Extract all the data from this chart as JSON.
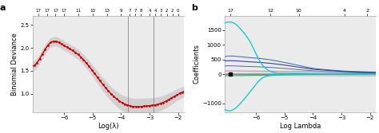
{
  "panel_a": {
    "title_label": "a",
    "xlabel": "Log(λ)",
    "ylabel": "Binomial Deviance",
    "top_axis_labels": [
      "17",
      "17",
      "17",
      "17",
      "11",
      "10",
      "13",
      "9",
      "7",
      "7",
      "8",
      "4",
      "4",
      "3",
      "2",
      "2",
      "0"
    ],
    "top_axis_x": [
      -6.9,
      -6.6,
      -6.3,
      -6.0,
      -5.5,
      -5.0,
      -4.5,
      -4.0,
      -3.7,
      -3.5,
      -3.3,
      -3.0,
      -2.8,
      -2.6,
      -2.4,
      -2.2,
      -2.0
    ],
    "vline1_x": -3.75,
    "vline2_x": -2.85,
    "xlim": [
      -7.1,
      -1.8
    ],
    "ylim": [
      0.6,
      2.7
    ],
    "yticks": [
      1.0,
      1.5,
      2.0,
      2.5
    ],
    "xticks": [
      -6,
      -5,
      -4,
      -3,
      -2
    ],
    "bg_color": "#ebebeb",
    "line_color": "#cc0000",
    "ribbon_color": "#cccccc"
  },
  "panel_b": {
    "title_label": "b",
    "xlabel": "Log Lambda",
    "ylabel": "Coefficients",
    "top_axis_labels": [
      "17",
      "12",
      "10",
      "4",
      "2"
    ],
    "top_axis_x": [
      -6.9,
      -5.5,
      -4.5,
      -2.9,
      -2.1
    ],
    "xlim": [
      -7.1,
      -1.8
    ],
    "ylim": [
      -1300,
      2000
    ],
    "yticks": [
      -1000,
      0,
      500,
      1000,
      1500
    ],
    "xticks": [
      -6,
      -5,
      -4,
      -3,
      -2
    ],
    "bg_color": "#ebebeb",
    "cyan_color": "#00cccc",
    "blue_color": "#4477bb",
    "darkblue_color": "#334488",
    "pink_color": "#cc88bb",
    "green_color": "#33aa66",
    "gray_color": "#999999"
  }
}
